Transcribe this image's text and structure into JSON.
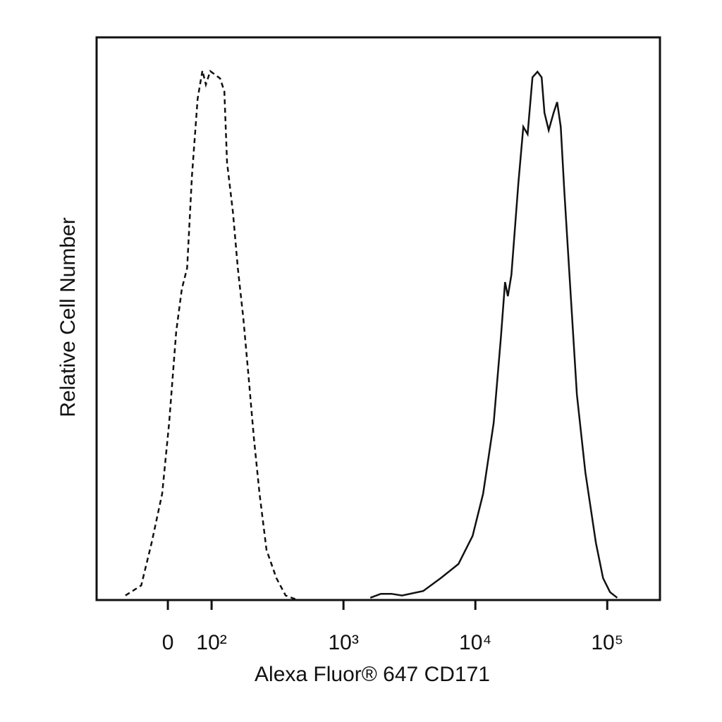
{
  "chart_data": {
    "type": "histogram-overlay",
    "x_label": "Alexa Fluor® 647 CD171",
    "y_label": "Relative Cell Number",
    "xscale": "biexponential",
    "xlim": [
      -163,
      251000
    ],
    "ylim": [
      0,
      100
    ],
    "xticks": [
      {
        "value": 0,
        "label": "0"
      },
      {
        "value": 100,
        "label": "10²"
      },
      {
        "value": 1000,
        "label": "10³"
      },
      {
        "value": 10000,
        "label": "10⁴"
      },
      {
        "value": 100000,
        "label": "10⁵"
      }
    ],
    "series": [
      {
        "color": "#111111",
        "style": "dashed",
        "x": [
          -97,
          -61,
          -37,
          -13,
          3,
          19,
          32,
          44,
          55,
          68,
          79,
          87,
          97,
          106,
          116,
          125,
          131,
          145,
          158,
          174,
          190,
          209,
          231,
          261,
          310,
          364,
          438
        ],
        "values": [
          0.8,
          2.6,
          10.2,
          18.9,
          31.5,
          47.7,
          55.3,
          59,
          75.3,
          89.1,
          94.1,
          91.6,
          94,
          93.4,
          92.7,
          90.4,
          77.8,
          69,
          59,
          50.1,
          40.2,
          28.9,
          18.9,
          8.9,
          3.9,
          0.8,
          0.1
        ]
      },
      {
        "color": "#111111",
        "style": "solid",
        "x": [
          1597,
          1920,
          2310,
          2780,
          4020,
          5470,
          7440,
          9530,
          11450,
          13770,
          15600,
          16790,
          17630,
          18750,
          21200,
          23100,
          24900,
          27100,
          29600,
          31800,
          33400,
          36000,
          39200,
          41700,
          44400,
          47200,
          52100,
          58900,
          68200,
          82000,
          92900,
          105000,
          119000
        ],
        "values": [
          0.4,
          1.1,
          1.1,
          0.8,
          1.6,
          3.9,
          6.4,
          11.4,
          18.9,
          31.5,
          46.5,
          56.5,
          54,
          57.8,
          74.1,
          84.1,
          82.8,
          92.9,
          93.9,
          92.9,
          86.6,
          83.5,
          86.6,
          88.5,
          84.1,
          72.8,
          56.5,
          36.5,
          22.7,
          10.2,
          3.9,
          1.4,
          0.4
        ]
      }
    ]
  }
}
